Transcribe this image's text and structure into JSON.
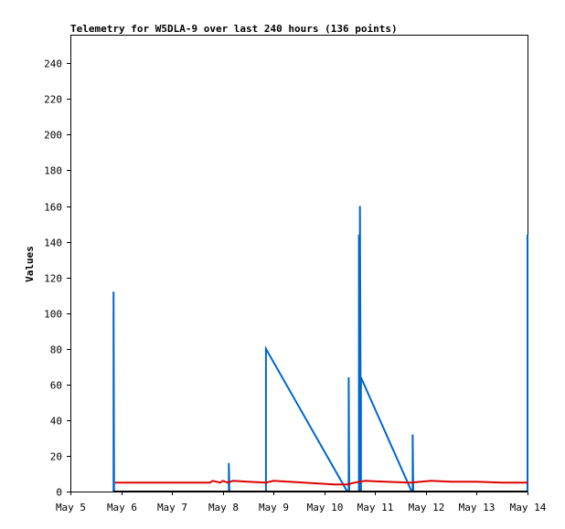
{
  "chart_data": {
    "type": "line",
    "title": "Telemetry for W5DLA-9 over last 240 hours (136 points)",
    "xlabel": "",
    "ylabel": "Values",
    "x_tick_labels": [
      "May 5",
      "May 6",
      "May 7",
      "May 8",
      "May 9",
      "May 10",
      "May 11",
      "May 12",
      "May 13",
      "May 14"
    ],
    "y_ticks": [
      0,
      20,
      40,
      60,
      80,
      100,
      120,
      140,
      160,
      180,
      200,
      220,
      240
    ],
    "xlim": [
      5,
      14
    ],
    "ylim": [
      0,
      256
    ],
    "grid": false,
    "legend": "none",
    "series": [
      {
        "color": "#0066cc",
        "points": [
          [
            5.85,
            0
          ],
          [
            5.85,
            112
          ],
          [
            5.86,
            0
          ],
          [
            8.12,
            0
          ],
          [
            8.12,
            16
          ],
          [
            8.13,
            0
          ],
          [
            8.85,
            0
          ],
          [
            8.85,
            80
          ],
          [
            10.45,
            0
          ],
          [
            10.48,
            0
          ],
          [
            10.48,
            64
          ],
          [
            10.49,
            0
          ],
          [
            10.68,
            0
          ],
          [
            10.68,
            144
          ],
          [
            10.7,
            0
          ],
          [
            10.7,
            160
          ],
          [
            10.72,
            0
          ],
          [
            10.72,
            64
          ],
          [
            11.72,
            0
          ],
          [
            11.74,
            0
          ],
          [
            11.74,
            32
          ],
          [
            11.75,
            0
          ],
          [
            14.0,
            0
          ],
          [
            14.0,
            144
          ]
        ]
      },
      {
        "color": "#dd0000",
        "points": [
          [
            5.88,
            5
          ],
          [
            7.75,
            5
          ],
          [
            7.8,
            6
          ],
          [
            7.95,
            5
          ],
          [
            8.0,
            6
          ],
          [
            8.1,
            5
          ],
          [
            8.2,
            6
          ],
          [
            8.5,
            5.5
          ],
          [
            8.85,
            5
          ],
          [
            9.0,
            6
          ],
          [
            9.3,
            5.5
          ],
          [
            9.6,
            5
          ],
          [
            9.9,
            4.5
          ],
          [
            10.2,
            4
          ],
          [
            10.45,
            4
          ],
          [
            10.6,
            5
          ],
          [
            10.8,
            6
          ],
          [
            11.2,
            5.5
          ],
          [
            11.7,
            5
          ],
          [
            12.1,
            6
          ],
          [
            12.5,
            5.5
          ],
          [
            13.0,
            5.5
          ],
          [
            13.5,
            5
          ],
          [
            14.0,
            5
          ]
        ]
      },
      {
        "color": "#000000",
        "points": [
          [
            5.85,
            0
          ],
          [
            14.0,
            0
          ]
        ]
      }
    ]
  }
}
